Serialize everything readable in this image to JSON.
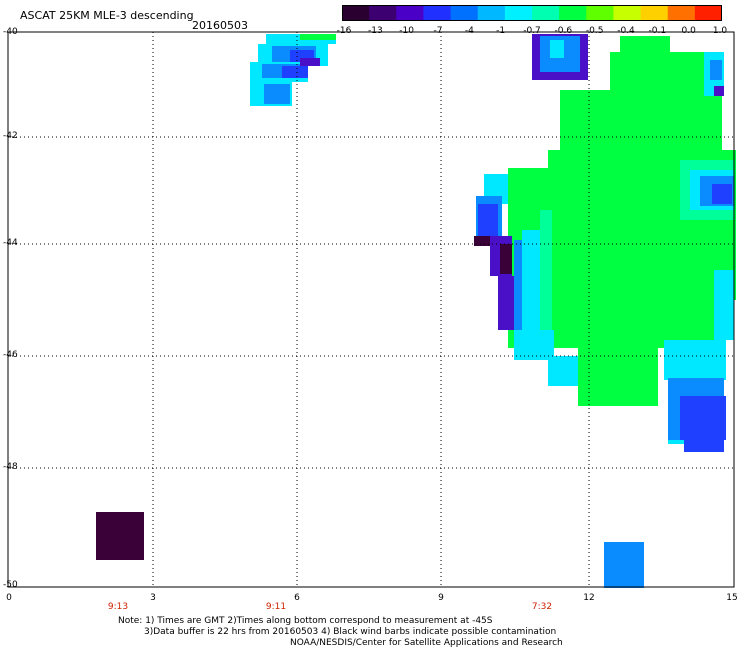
{
  "header": {
    "title": "ASCAT 25KM MLE-3 descending",
    "date": "20160503"
  },
  "colorbar": {
    "ticks": [
      "-16",
      "-13",
      "-10",
      "-7",
      "-4",
      "-1",
      "-0.7",
      "-0.6",
      "-0.5",
      "-0.4",
      "-0.1",
      "0.0",
      "1.0"
    ],
    "colors": [
      "#2a0030",
      "#3c0070",
      "#4b00c8",
      "#2030ff",
      "#0070ff",
      "#00b8ff",
      "#00f0ff",
      "#00ffb0",
      "#00ff40",
      "#60ff00",
      "#c8ff00",
      "#ffd000",
      "#ff7000",
      "#ff2000"
    ]
  },
  "axes": {
    "lat_labels": [
      "-40",
      "-42",
      "-44",
      "-46",
      "-48",
      "-50"
    ],
    "lon_labels": [
      "0",
      "3",
      "6",
      "9",
      "12",
      "15"
    ],
    "times": [
      "9:13",
      "9:11",
      "7:32"
    ]
  },
  "palette": {
    "dark": "#3a0038",
    "purple": "#4a10c8",
    "blue": "#2040ff",
    "lightblue": "#0a8cff",
    "cyan": "#00e8ff",
    "green": "#00ff40",
    "greencyan": "#00ff98"
  },
  "notes": {
    "line1": "Note: 1) Times are GMT 2)Times along bottom correspond to measurement at -45S",
    "line2": "3)Data buffer is 22 hrs from 20160503 4) Black wind barbs indicate possible contamination",
    "line3": "NOAA/NESDIS/Center for Satellite Applications and Research"
  }
}
